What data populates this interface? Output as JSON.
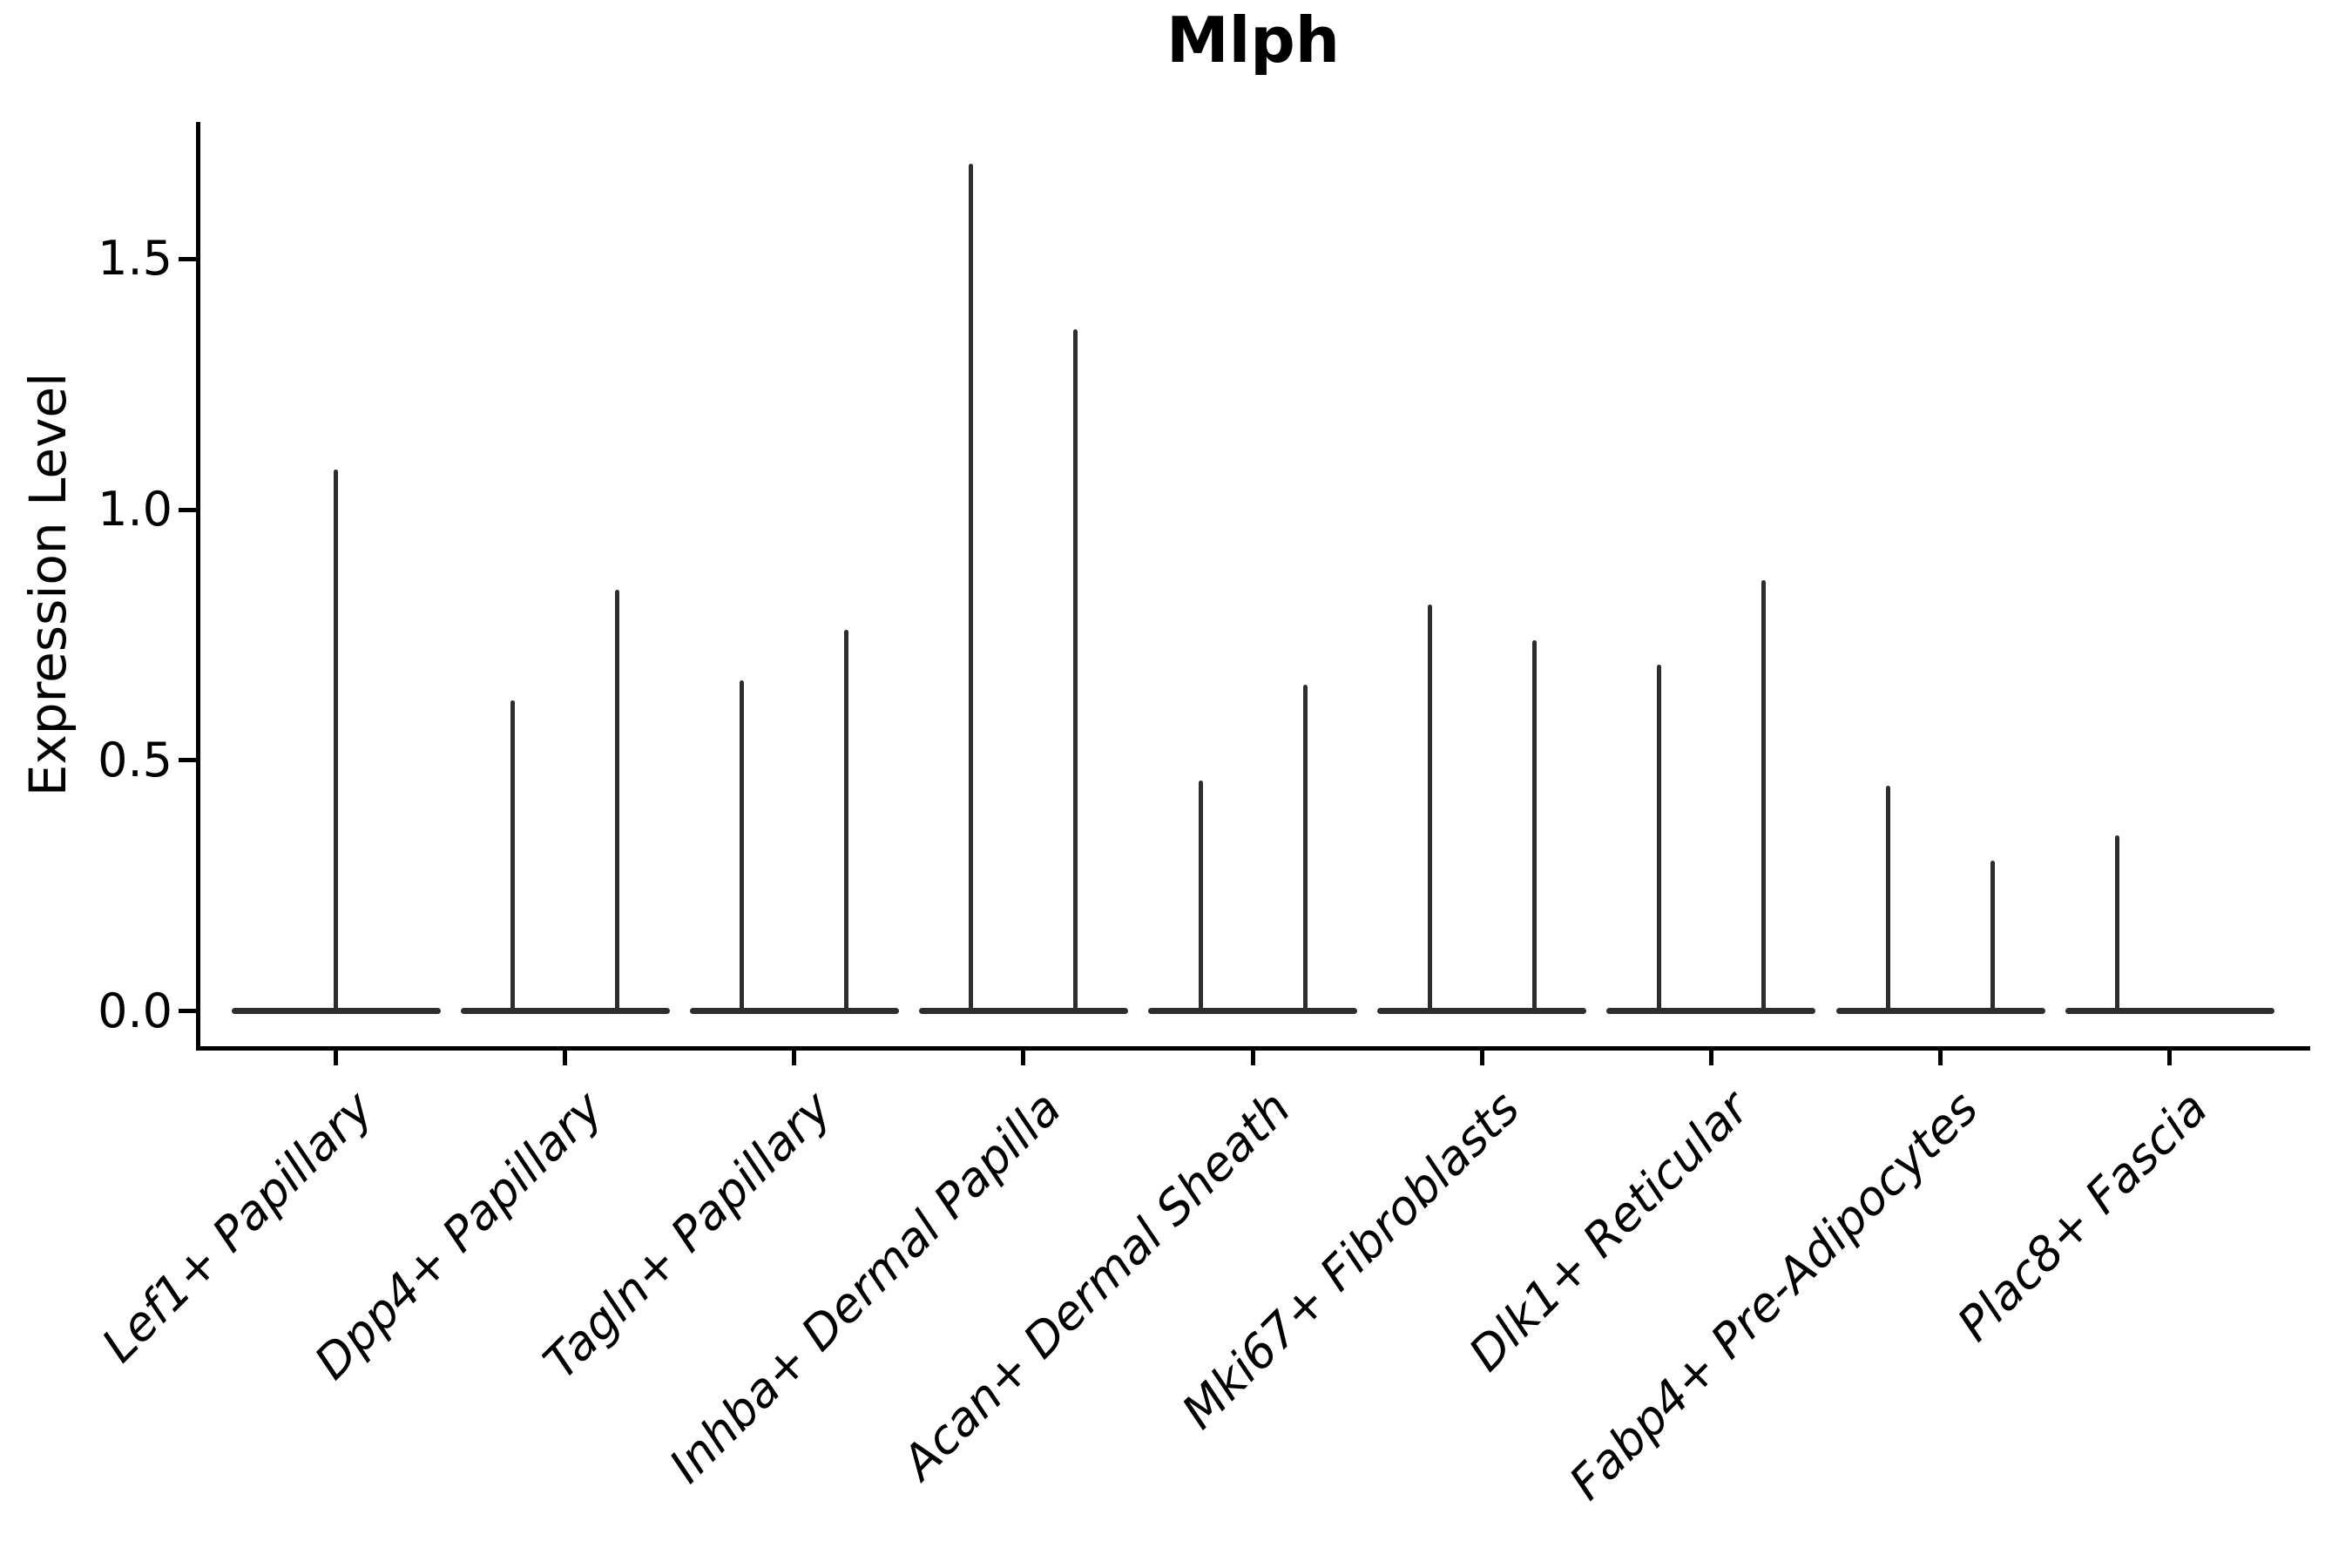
{
  "figure": {
    "title": "Mlph",
    "ylabel": "Expression Level"
  },
  "chart_data": {
    "type": "violin",
    "title": "Mlph",
    "xlabel": "",
    "ylabel": "Expression Level",
    "yticks": [
      0.0,
      0.5,
      1.0,
      1.5
    ],
    "ytick_labels": [
      "0.0",
      "0.5",
      "1.0",
      "1.5"
    ],
    "ylim": [
      -0.09,
      1.77
    ],
    "grid": false,
    "legend": "none",
    "style_note": "Each violin's density is concentrated at 0, drawn as a flat horizontal body at y=0 plus a thin vertical spike reaching the maximum expression value.",
    "categories": [
      "Lef1+ Papillary",
      "Dpp4+ Papillary",
      "Tagln+ Papillary",
      "Inhba+ Dermal Papilla",
      "Acan+ Dermal Sheath",
      "Mki67+ Fibroblasts",
      "Dlk1+ Reticular",
      "Fabp4+ Pre-Adipocytes",
      "Plac8+ Fascia"
    ],
    "violins": [
      {
        "category": "Lef1+ Papillary",
        "group_violins": [
          {
            "position": "center",
            "min": 0,
            "max": 1.08
          }
        ]
      },
      {
        "category": "Dpp4+ Papillary",
        "group_violins": [
          {
            "position": "left",
            "min": 0,
            "max": 0.62
          },
          {
            "position": "right",
            "min": 0,
            "max": 0.84
          }
        ]
      },
      {
        "category": "Tagln+ Papillary",
        "group_violins": [
          {
            "position": "left",
            "min": 0,
            "max": 0.66
          },
          {
            "position": "right",
            "min": 0,
            "max": 0.76
          }
        ]
      },
      {
        "category": "Inhba+ Dermal Papilla",
        "group_violins": [
          {
            "position": "left",
            "min": 0,
            "max": 1.69
          },
          {
            "position": "right",
            "min": 0,
            "max": 1.36
          }
        ]
      },
      {
        "category": "Acan+ Dermal Sheath",
        "group_violins": [
          {
            "position": "left",
            "min": 0,
            "max": 0.46
          },
          {
            "position": "right",
            "min": 0,
            "max": 0.65
          }
        ]
      },
      {
        "category": "Mki67+ Fibroblasts",
        "group_violins": [
          {
            "position": "left",
            "min": 0,
            "max": 0.81
          },
          {
            "position": "right",
            "min": 0,
            "max": 0.74
          }
        ]
      },
      {
        "category": "Dlk1+ Reticular",
        "group_violins": [
          {
            "position": "left",
            "min": 0,
            "max": 0.69
          },
          {
            "position": "right",
            "min": 0,
            "max": 0.86
          }
        ]
      },
      {
        "category": "Fabp4+ Pre-Adipocytes",
        "group_violins": [
          {
            "position": "left",
            "min": 0,
            "max": 0.45
          },
          {
            "position": "right",
            "min": 0,
            "max": 0.3
          }
        ]
      },
      {
        "category": "Plac8+ Fascia",
        "group_violins": [
          {
            "position": "left",
            "min": 0,
            "max": 0.35
          },
          {
            "position": "right",
            "min": 0,
            "max": 0.0
          }
        ]
      }
    ],
    "colors": {
      "violin": "#2d2d2d",
      "axis": "#000000",
      "text": "#000000",
      "background": "#ffffff"
    }
  }
}
